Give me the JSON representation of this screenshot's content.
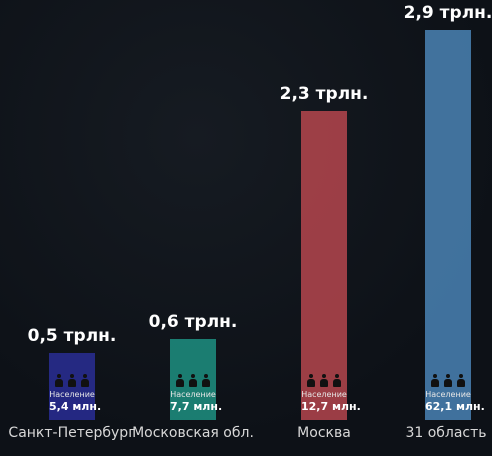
{
  "chart_data": {
    "type": "bar",
    "categories": [
      "Санкт-Петербург",
      "Московская обл.",
      "Москва",
      "31 область"
    ],
    "values": [
      0.5,
      0.6,
      2.3,
      2.9
    ],
    "value_labels": [
      "0,5 трлн.",
      "0,6 трлн.",
      "2,3 трлн.",
      "2,9 трлн."
    ],
    "population_caption": "Население",
    "population": [
      "5,4 млн.",
      "7,7 млн.",
      "12,7 млн.",
      "62,1 млн."
    ],
    "colors": [
      "#2c2fa0",
      "#1f9b8a",
      "#c44a52",
      "#4f8dc3"
    ],
    "ylim": [
      0,
      3.0
    ]
  }
}
